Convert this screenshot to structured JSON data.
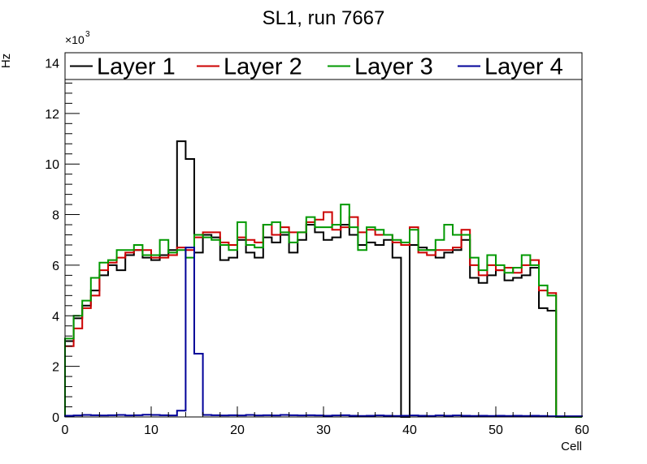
{
  "chart_data": {
    "type": "line",
    "title": "SL1, run 7667",
    "xlabel": "Cell",
    "ylabel": "Hz",
    "y_multiplier_label": "×10",
    "y_multiplier_exponent": "3",
    "xlim": [
      0,
      60
    ],
    "ylim": [
      0,
      14.4
    ],
    "x_ticks": [
      0,
      10,
      20,
      30,
      40,
      50,
      60
    ],
    "x_tick_labels": [
      "0",
      "10",
      "20",
      "30",
      "40",
      "50",
      "60"
    ],
    "y_ticks": [
      0,
      2,
      4,
      6,
      8,
      10,
      12,
      14
    ],
    "y_tick_labels": [
      "0",
      "2",
      "4",
      "6",
      "8",
      "10",
      "12",
      "14"
    ],
    "grid": false,
    "legend_position": "top",
    "bin_edges_start": 0,
    "bin_width": 1,
    "series": [
      {
        "name": "Layer 1",
        "color": "#000000",
        "values": [
          3.0,
          3.9,
          4.4,
          5.0,
          5.6,
          6.0,
          5.8,
          6.4,
          6.6,
          6.3,
          6.2,
          6.4,
          6.6,
          10.9,
          10.2,
          6.5,
          7.2,
          7.1,
          6.2,
          6.3,
          7.0,
          6.5,
          6.3,
          7.1,
          6.9,
          7.2,
          6.5,
          7.0,
          7.6,
          7.3,
          7.0,
          7.1,
          7.6,
          7.2,
          6.8,
          6.9,
          6.8,
          7.0,
          6.3,
          0.0,
          6.8,
          6.7,
          6.6,
          6.3,
          6.5,
          6.6,
          7.0,
          5.5,
          5.3,
          5.6,
          5.8,
          5.4,
          5.5,
          5.6,
          5.9,
          4.3,
          4.2,
          0,
          0,
          0
        ]
      },
      {
        "name": "Layer 2",
        "color": "#cc0000",
        "values": [
          2.8,
          3.5,
          4.3,
          4.8,
          5.8,
          6.1,
          6.3,
          6.5,
          6.6,
          6.6,
          6.3,
          6.3,
          6.4,
          6.7,
          6.6,
          7.1,
          7.3,
          7.3,
          6.9,
          6.8,
          7.1,
          7.0,
          6.9,
          7.6,
          7.2,
          7.5,
          7.3,
          7.3,
          7.7,
          7.8,
          8.1,
          7.4,
          7.5,
          7.9,
          7.3,
          7.4,
          7.2,
          7.2,
          6.9,
          6.8,
          7.5,
          6.5,
          6.4,
          6.6,
          6.6,
          6.7,
          7.4,
          6.0,
          5.6,
          6.0,
          5.8,
          5.9,
          5.7,
          6.0,
          6.2,
          5.0,
          4.9,
          0,
          0,
          0
        ]
      },
      {
        "name": "Layer 3",
        "color": "#009900",
        "values": [
          3.1,
          4.0,
          4.6,
          5.5,
          6.1,
          6.2,
          6.6,
          6.6,
          6.8,
          6.4,
          6.4,
          7.0,
          6.5,
          6.6,
          6.3,
          7.2,
          7.1,
          7.0,
          6.8,
          6.6,
          7.7,
          6.8,
          6.7,
          7.6,
          7.7,
          7.3,
          6.9,
          7.3,
          7.9,
          7.5,
          7.5,
          7.6,
          8.4,
          7.5,
          6.6,
          7.5,
          7.4,
          7.2,
          7.0,
          6.9,
          7.4,
          6.6,
          6.6,
          7.0,
          7.6,
          7.2,
          7.2,
          6.3,
          5.8,
          6.4,
          6.0,
          5.7,
          5.9,
          6.4,
          6.0,
          5.2,
          4.8,
          0,
          0,
          0
        ]
      },
      {
        "name": "Layer 4",
        "color": "#000099",
        "values": [
          0.05,
          0.06,
          0.08,
          0.07,
          0.06,
          0.07,
          0.08,
          0.06,
          0.07,
          0.09,
          0.08,
          0.07,
          0.06,
          0.25,
          6.7,
          2.5,
          0.08,
          0.07,
          0.06,
          0.07,
          0.06,
          0.08,
          0.06,
          0.07,
          0.06,
          0.08,
          0.07,
          0.06,
          0.07,
          0.06,
          0.05,
          0.06,
          0.07,
          0.05,
          0.04,
          0.05,
          0.06,
          0.05,
          0.04,
          0.05,
          0.06,
          0.05,
          0.04,
          0.06,
          0.05,
          0.06,
          0.05,
          0.04,
          0.05,
          0.04,
          0.05,
          0.04,
          0.05,
          0.04,
          0.05,
          0.04,
          0.03,
          0.03,
          0.03,
          0.03
        ]
      }
    ]
  }
}
